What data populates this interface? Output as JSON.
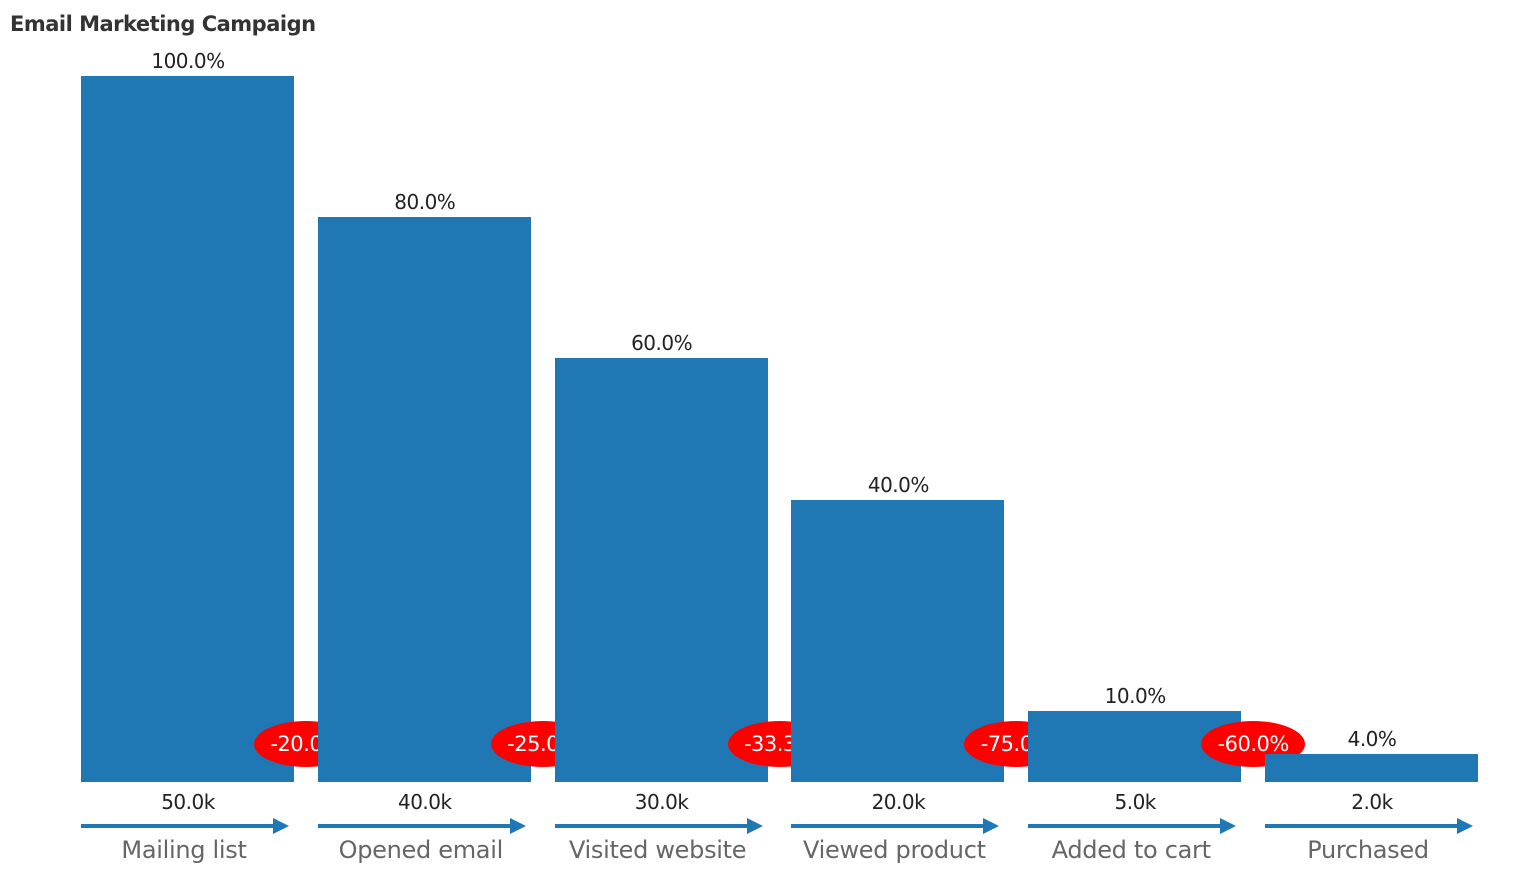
{
  "chart_data": {
    "type": "bar",
    "title": "Email Marketing Campaign",
    "xlabel": "",
    "ylabel": "",
    "categories": [
      "Mailing list",
      "Opened email",
      "Visited website",
      "Viewed product",
      "Added to cart",
      "Purchased"
    ],
    "values": [
      50000,
      40000,
      30000,
      20000,
      5000,
      2000
    ],
    "value_labels": [
      "50.0k",
      "40.0k",
      "30.0k",
      "20.0k",
      "5.0k",
      "2.0k"
    ],
    "percent_of_first": [
      "100.0%",
      "80.0%",
      "60.0%",
      "40.0%",
      "10.0%",
      "4.0%"
    ],
    "step_change": [
      "-20.0%",
      "-25.0%",
      "-33.3%",
      "-75.0%",
      "-60.0%"
    ],
    "grid": false,
    "legend": "none",
    "colors": {
      "bar": "#1f77b4",
      "drop_badge": "#ff0000",
      "arrow": "#1f77b4"
    }
  }
}
